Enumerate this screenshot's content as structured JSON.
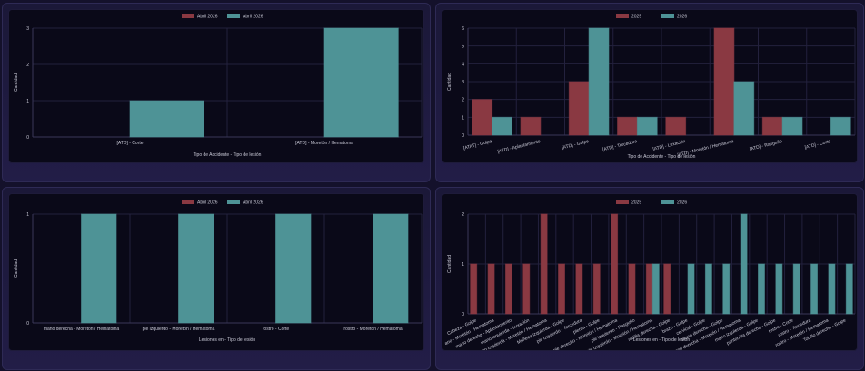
{
  "colors": {
    "red": "#8a3942",
    "teal": "#4e9396",
    "grid": "#23213d",
    "axis": "#3a3758"
  },
  "charts": [
    {
      "chart_data": {
        "type": "bar",
        "xlabel": "Tipo de Accidente - Tipo de lesión",
        "ylabel": "Cantidad",
        "ylim": [
          0,
          3
        ],
        "yticks": [
          "0",
          "1",
          "2",
          "3"
        ],
        "legend": "top-center",
        "grid": true,
        "categories": [
          "[ATD] - Corte",
          "[ATD] - Moretón / Hematoma"
        ],
        "series": [
          {
            "name": "Abril 2026",
            "values": [
              0,
              0
            ]
          },
          {
            "name": "Abril 2026",
            "values": [
              1,
              3
            ]
          }
        ]
      }
    },
    {
      "chart_data": {
        "type": "bar",
        "xlabel": "Tipo de Accidente - Tipo de lesión",
        "ylabel": "Cantidad",
        "ylim": [
          0,
          6
        ],
        "yticks": [
          "0",
          "1",
          "2",
          "3",
          "4",
          "5",
          "6"
        ],
        "legend": "top-center",
        "grid": true,
        "categories": [
          "[ATAT] - Golpe",
          "[ATD] - Aplastamiento",
          "[ATD] - Golpe",
          "[ATD] - Torcedura",
          "[ATD] - Luxación",
          "[ATD] - Moretón / Hematoma",
          "[ATD] - Rasguño",
          "[ATD] - Corte"
        ],
        "series": [
          {
            "name": "2025",
            "values": [
              2,
              1,
              3,
              1,
              1,
              6,
              1,
              0
            ]
          },
          {
            "name": "2026",
            "values": [
              1,
              0,
              6,
              1,
              0,
              3,
              1,
              1
            ]
          }
        ]
      }
    },
    {
      "chart_data": {
        "type": "bar",
        "xlabel": "Lesiones en - Tipo de lesión",
        "ylabel": "Cantidad",
        "ylim": [
          0,
          1
        ],
        "yticks": [
          "0",
          "1"
        ],
        "legend": "top-center",
        "grid": true,
        "categories": [
          "mano derecha - Moretón / Hematoma",
          "pie izquierdo - Moretón / Hematoma",
          "rostro - Corte",
          "rostro - Moretón / Hematoma"
        ],
        "series": [
          {
            "name": "Abril 2026",
            "values": [
              0,
              0,
              0,
              0
            ]
          },
          {
            "name": "Abril 2026",
            "values": [
              1,
              1,
              1,
              1
            ]
          }
        ]
      }
    },
    {
      "chart_data": {
        "type": "bar",
        "xlabel": "Lesiones en - Tipo de lesión",
        "ylabel": "Cantidad",
        "ylim": [
          0,
          2
        ],
        "yticks": [
          "0",
          "1",
          "2"
        ],
        "legend": "top-center",
        "grid": true,
        "categories": [
          "Cabeza - Golpe",
          "ano - Moretón / Hematoma",
          "mano derecha - Aplastamiento",
          "mano izquierda - Luxación",
          "mano izquierda - Moretón / Hematoma",
          "Muñeca izquierda - Golpe",
          "pie izquierdo - Torcedura",
          "pierna - Golpe",
          "pie derecho - Moretón / Hematoma",
          "pie izquierdo - Rasguño",
          "pie izquierdo - Moretón / Hematoma",
          "rodilla derecha - Golpe",
          "brazo - Golpe",
          "cervical - Golpe",
          "mano derecha - Golpe",
          "mano derecha - Moretón / Hematoma",
          "mano izquierda - Golpe",
          "pantorrilla derecha - Golpe",
          "rostro - Corte",
          "rostro - Torcedura",
          "rostro - Moretón / Hematoma",
          "Tobillo derecho - Golpe"
        ],
        "series": [
          {
            "name": "2025",
            "values": [
              1,
              1,
              1,
              1,
              2,
              1,
              1,
              1,
              2,
              1,
              1,
              1,
              0,
              0,
              0,
              0,
              0,
              0,
              0,
              0,
              0,
              0
            ]
          },
          {
            "name": "2026",
            "values": [
              0,
              0,
              0,
              0,
              0,
              0,
              0,
              0,
              0,
              0,
              1,
              0,
              1,
              1,
              1,
              2,
              1,
              1,
              1,
              1,
              1,
              1
            ]
          }
        ]
      }
    }
  ]
}
